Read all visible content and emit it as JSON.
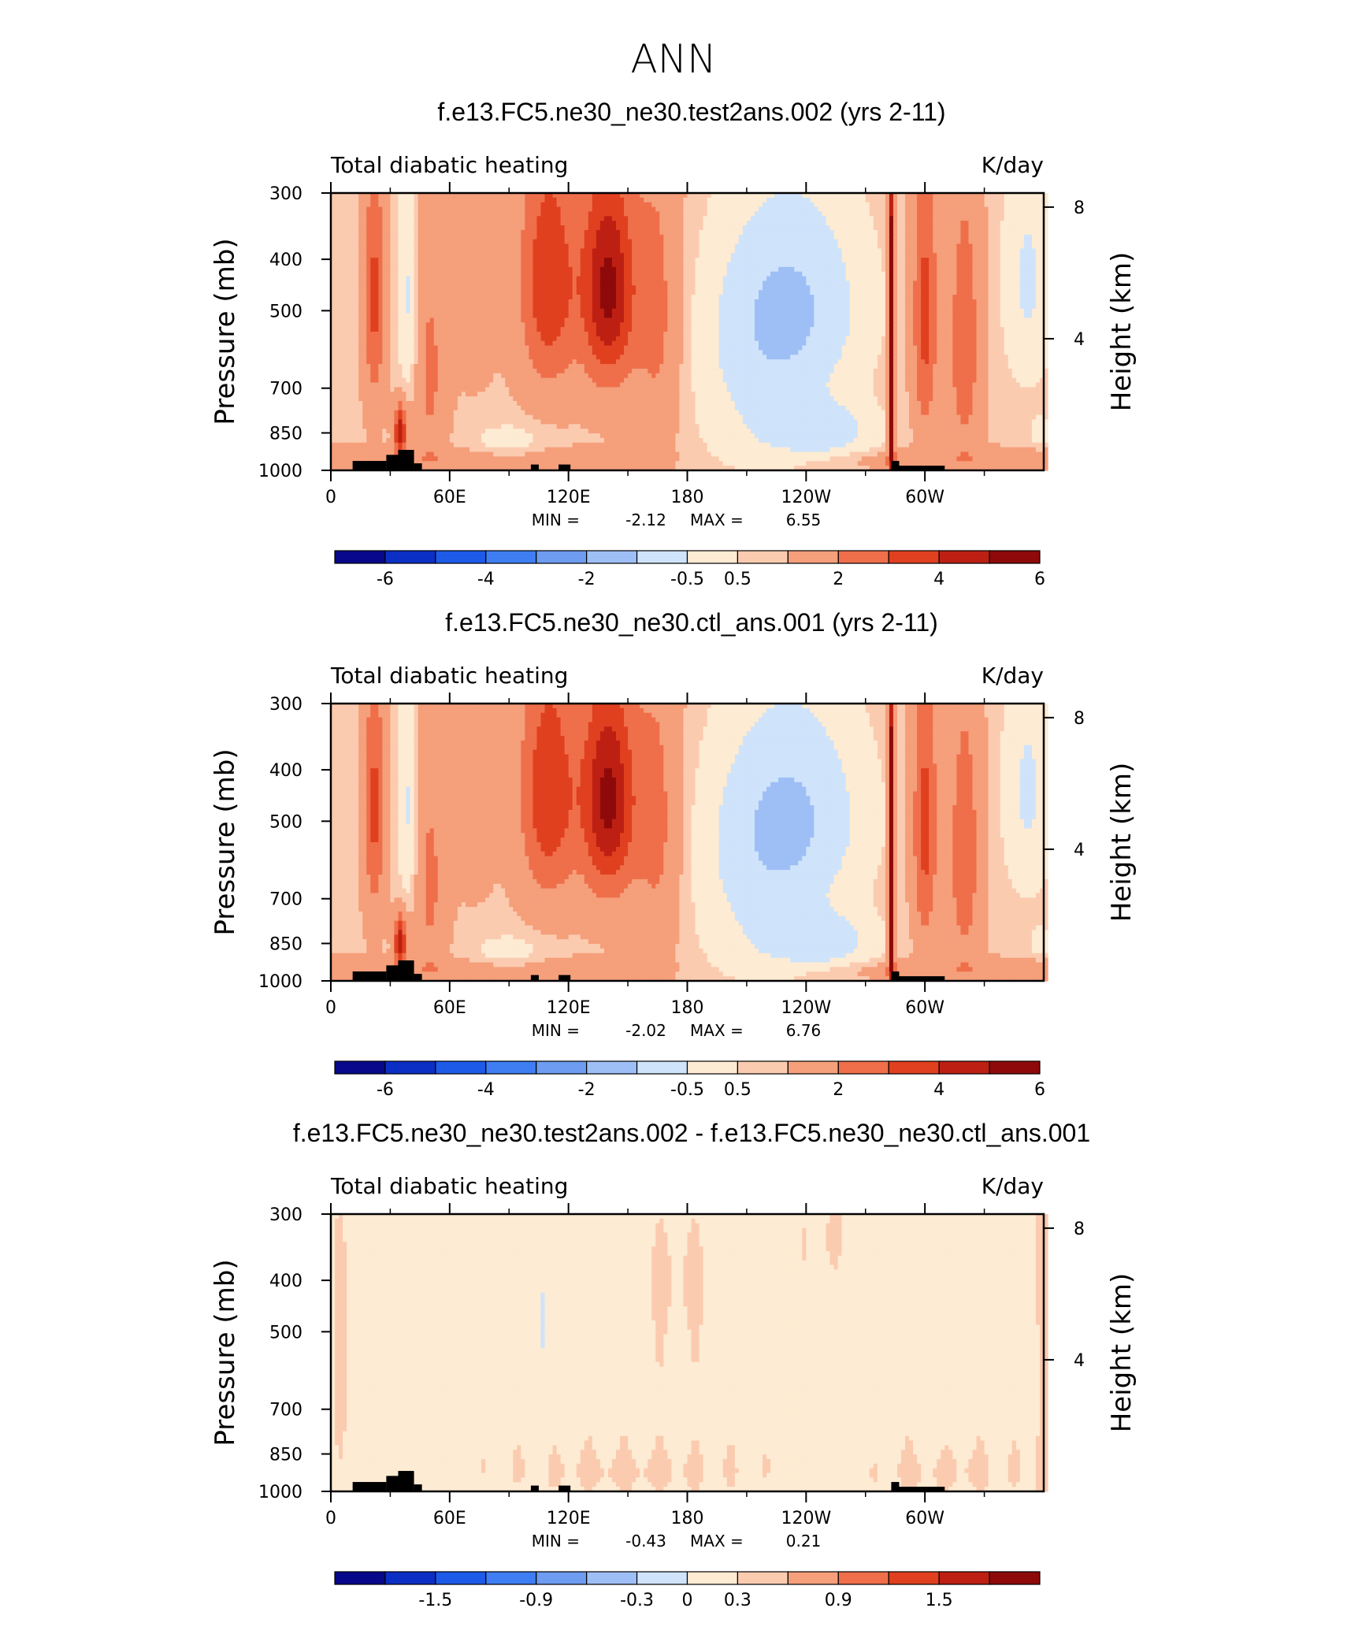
{
  "figure": {
    "title": "ANN"
  },
  "palette": [
    "#08088a",
    "#0b2fc4",
    "#1e5ae8",
    "#3e7ef2",
    "#6d9cf0",
    "#9ebff6",
    "#cfe3fb",
    "#fdebd3",
    "#fbcbb0",
    "#f59f7b",
    "#ef6f4a",
    "#e0401f",
    "#bd2013",
    "#8e0a0a"
  ],
  "chart_data": [
    {
      "type": "heatmap",
      "title": "f.e13.FC5.ne30_ne30.test2ans.002 (yrs 2-11)",
      "left_label": "Total diabatic heating",
      "right_label": "K/day",
      "ylabel": "Pressure (mb)",
      "ylabel_right": "Height (km)",
      "x_ticks": [
        "0",
        "60E",
        "120E",
        "180",
        "120W",
        "60W"
      ],
      "x_tick_lon": [
        0,
        60,
        120,
        180,
        240,
        300
      ],
      "xlim": [
        0,
        360
      ],
      "y_ticks": [
        "300",
        "400",
        "500",
        "700",
        "850",
        "1000"
      ],
      "y_tick_p": [
        300,
        400,
        500,
        700,
        850,
        1000
      ],
      "ylim": [
        1000,
        300
      ],
      "y_scale": "log",
      "y_right_ticks": [
        "8",
        "4"
      ],
      "y_right_km": [
        8,
        4
      ],
      "stats": {
        "min_label": "MIN =",
        "min": "-2.12",
        "max_label": "MAX =",
        "max": "6.55"
      },
      "colorbar": {
        "labels": [
          "-6",
          "-4",
          "-2",
          "-0.5",
          "0.5",
          "2",
          "4",
          "6"
        ],
        "label_edges": [
          1,
          3,
          5,
          7,
          8,
          10,
          12,
          14
        ]
      },
      "field": "full"
    },
    {
      "type": "heatmap",
      "title": "f.e13.FC5.ne30_ne30.ctl_ans.001 (yrs 2-11)",
      "left_label": "Total diabatic heating",
      "right_label": "K/day",
      "ylabel": "Pressure (mb)",
      "ylabel_right": "Height (km)",
      "x_ticks": [
        "0",
        "60E",
        "120E",
        "180",
        "120W",
        "60W"
      ],
      "x_tick_lon": [
        0,
        60,
        120,
        180,
        240,
        300
      ],
      "xlim": [
        0,
        360
      ],
      "y_ticks": [
        "300",
        "400",
        "500",
        "700",
        "850",
        "1000"
      ],
      "y_tick_p": [
        300,
        400,
        500,
        700,
        850,
        1000
      ],
      "ylim": [
        1000,
        300
      ],
      "y_scale": "log",
      "y_right_ticks": [
        "8",
        "4"
      ],
      "y_right_km": [
        8,
        4
      ],
      "stats": {
        "min_label": "MIN =",
        "min": "-2.02",
        "max_label": "MAX =",
        "max": "6.76"
      },
      "colorbar": {
        "labels": [
          "-6",
          "-4",
          "-2",
          "-0.5",
          "0.5",
          "2",
          "4",
          "6"
        ],
        "label_edges": [
          1,
          3,
          5,
          7,
          8,
          10,
          12,
          14
        ]
      },
      "field": "full"
    },
    {
      "type": "heatmap",
      "title": "f.e13.FC5.ne30_ne30.test2ans.002 - f.e13.FC5.ne30_ne30.ctl_ans.001",
      "left_label": "Total diabatic heating",
      "right_label": "K/day",
      "ylabel": "Pressure (mb)",
      "ylabel_right": "Height (km)",
      "x_ticks": [
        "0",
        "60E",
        "120E",
        "180",
        "120W",
        "60W"
      ],
      "x_tick_lon": [
        0,
        60,
        120,
        180,
        240,
        300
      ],
      "xlim": [
        0,
        360
      ],
      "y_ticks": [
        "300",
        "400",
        "500",
        "700",
        "850",
        "1000"
      ],
      "y_tick_p": [
        300,
        400,
        500,
        700,
        850,
        1000
      ],
      "ylim": [
        1000,
        300
      ],
      "y_scale": "log",
      "y_right_ticks": [
        "8",
        "4"
      ],
      "y_right_km": [
        8,
        4
      ],
      "stats": {
        "min_label": "MIN =",
        "min": "-0.43",
        "max_label": "MAX =",
        "max": "0.21"
      },
      "colorbar": {
        "labels": [
          "-1.5",
          "-0.9",
          "-0.3",
          "0",
          "0.3",
          "0.9",
          "1.5"
        ],
        "label_edges": [
          2,
          4,
          6,
          7,
          8,
          10,
          12
        ]
      },
      "field": "diff"
    }
  ]
}
